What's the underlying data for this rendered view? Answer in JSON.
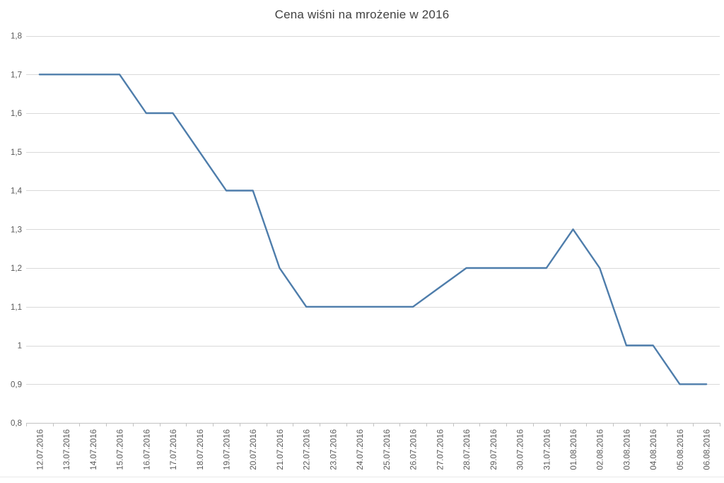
{
  "chart": {
    "title": "Cena wiśni na mrożenie w 2016"
  },
  "chart_data": {
    "type": "line",
    "title": "Cena wiśni na mrożenie w 2016",
    "categories": [
      "12.07.2016",
      "13.07.2016",
      "14.07.2016",
      "15.07.2016",
      "16.07.2016",
      "17.07.2016",
      "18.07.2016",
      "19.07.2016",
      "20.07.2016",
      "21.07.2016",
      "22.07.2016",
      "23.07.2016",
      "24.07.2016",
      "25.07.2016",
      "26.07.2016",
      "27.07.2016",
      "28.07.2016",
      "29.07.2016",
      "30.07.2016",
      "31.07.2016",
      "01.08.2016",
      "02.08.2016",
      "03.08.2016",
      "04.08.2016",
      "05.08.2016",
      "06.08.2016"
    ],
    "values": [
      1.7,
      1.7,
      1.7,
      1.7,
      1.6,
      1.6,
      1.5,
      1.4,
      1.4,
      1.2,
      1.1,
      1.1,
      1.1,
      1.1,
      1.1,
      1.15,
      1.2,
      1.2,
      1.2,
      1.2,
      1.3,
      1.2,
      1.0,
      1.0,
      0.9,
      0.9
    ],
    "xlabel": "",
    "ylabel": "",
    "ylim": [
      0.8,
      1.8
    ],
    "ytick_step": 0.1,
    "ytick_labels": [
      "0,8",
      "0,9",
      "1",
      "1,1",
      "1,2",
      "1,3",
      "1,4",
      "1,5",
      "1,6",
      "1,7",
      "1,8"
    ],
    "grid": true,
    "legend": "none",
    "colors": {
      "line": "#4e7dab",
      "grid": "#d9d9d9",
      "axis": "#c3c3c3",
      "tick_label": "#595959",
      "title": "#414141",
      "page_border": "#e9e9e9"
    }
  }
}
